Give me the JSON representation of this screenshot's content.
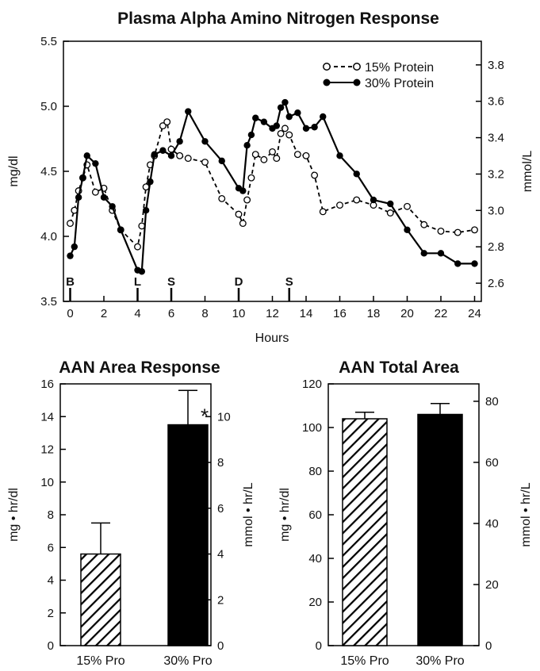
{
  "chart_data": [
    {
      "type": "line",
      "title": "Plasma Alpha Amino Nitrogen Response",
      "xlabel": "Hours",
      "ylabel": "mg/dl",
      "ylabel_right": "mmol/L",
      "xlim": [
        -0.4,
        24.4
      ],
      "ylim": [
        3.5,
        5.5
      ],
      "ylim_right": [
        2.5,
        3.93
      ],
      "x_ticks": [
        "0",
        "2",
        "4",
        "6",
        "8",
        "10",
        "12",
        "14",
        "16",
        "18",
        "20",
        "22",
        "24"
      ],
      "y_ticks": [
        "3.5",
        "4.0",
        "4.5",
        "5.0",
        "5.5"
      ],
      "y_ticks_right": [
        "2.6",
        "2.8",
        "3.0",
        "3.2",
        "3.4",
        "3.6",
        "3.8"
      ],
      "legend_position": "top-right",
      "meal_events": [
        {
          "label": "B",
          "x": 0
        },
        {
          "label": "L",
          "x": 4
        },
        {
          "label": "S",
          "x": 6
        },
        {
          "label": "D",
          "x": 10
        },
        {
          "label": "S",
          "x": 13
        }
      ],
      "series": [
        {
          "name": "15% Protein",
          "style": "dashed",
          "marker": "open-circle",
          "color": "#000000",
          "x": [
            0,
            0.25,
            0.5,
            0.75,
            1,
            1.5,
            2,
            2.5,
            3,
            4,
            4.25,
            4.5,
            4.75,
            5,
            5.5,
            5.75,
            6,
            6.5,
            7,
            8,
            9,
            10,
            10.25,
            10.5,
            10.75,
            11,
            11.5,
            12,
            12.25,
            12.5,
            12.75,
            13,
            13.5,
            14,
            14.5,
            15,
            16,
            17,
            18,
            19,
            20,
            21,
            22,
            23,
            24
          ],
          "y": [
            4.1,
            4.2,
            4.35,
            4.45,
            4.55,
            4.34,
            4.37,
            4.2,
            4.05,
            3.92,
            4.08,
            4.38,
            4.55,
            4.62,
            4.85,
            4.88,
            4.67,
            4.62,
            4.6,
            4.57,
            4.29,
            4.17,
            4.1,
            4.28,
            4.45,
            4.63,
            4.59,
            4.65,
            4.6,
            4.79,
            4.83,
            4.78,
            4.63,
            4.62,
            4.47,
            4.19,
            4.24,
            4.28,
            4.24,
            4.18,
            4.23,
            4.09,
            4.04,
            4.03,
            4.05
          ]
        },
        {
          "name": "30% Protein",
          "style": "solid",
          "marker": "filled-circle",
          "color": "#000000",
          "x": [
            0,
            0.25,
            0.5,
            0.75,
            1,
            1.5,
            2,
            2.5,
            3,
            4,
            4.25,
            4.5,
            4.75,
            5,
            5.5,
            6,
            6.5,
            7,
            8,
            9,
            10,
            10.25,
            10.5,
            10.75,
            11,
            11.5,
            12,
            12.25,
            12.5,
            12.75,
            13,
            13.5,
            14,
            14.5,
            15,
            16,
            17,
            18,
            19,
            20,
            21,
            22,
            23,
            24
          ],
          "y": [
            3.85,
            3.92,
            4.3,
            4.45,
            4.62,
            4.56,
            4.3,
            4.23,
            4.05,
            3.74,
            3.73,
            4.2,
            4.42,
            4.63,
            4.66,
            4.62,
            4.73,
            4.96,
            4.73,
            4.58,
            4.37,
            4.35,
            4.7,
            4.78,
            4.91,
            4.88,
            4.83,
            4.85,
            4.99,
            5.03,
            4.92,
            4.95,
            4.83,
            4.84,
            4.92,
            4.62,
            4.48,
            4.28,
            4.25,
            4.05,
            3.87,
            3.87,
            3.79,
            3.79
          ]
        }
      ]
    },
    {
      "type": "bar",
      "title": "AAN Area Response",
      "ylabel": "mg • hr/dl",
      "ylabel_right": "mmol • hr/L",
      "ylim": [
        0,
        16
      ],
      "ylim_right": [
        0,
        11.43
      ],
      "y_ticks": [
        "0",
        "2",
        "4",
        "6",
        "8",
        "10",
        "12",
        "14",
        "16"
      ],
      "y_ticks_right": [
        "0",
        "2",
        "4",
        "6",
        "8",
        "10"
      ],
      "categories": [
        "15% Pro",
        "30% Pro"
      ],
      "values": [
        5.6,
        13.5
      ],
      "errors": [
        1.9,
        2.1
      ],
      "fills": [
        "hatch",
        "solid"
      ],
      "annotations": [
        {
          "category": "30% Pro",
          "text": "*"
        }
      ]
    },
    {
      "type": "bar",
      "title": "AAN Total Area",
      "ylabel": "mg • hr/dl",
      "ylabel_right": "mmol • hr/L",
      "ylim": [
        0,
        120
      ],
      "ylim_right": [
        0,
        85.7
      ],
      "y_ticks": [
        "0",
        "20",
        "40",
        "60",
        "80",
        "100",
        "120"
      ],
      "y_ticks_right": [
        "0",
        "20",
        "40",
        "60",
        "80"
      ],
      "categories": [
        "15% Pro",
        "30% Pro"
      ],
      "values": [
        104,
        106
      ],
      "errors": [
        3,
        5
      ],
      "fills": [
        "hatch",
        "solid"
      ],
      "annotations": []
    }
  ]
}
